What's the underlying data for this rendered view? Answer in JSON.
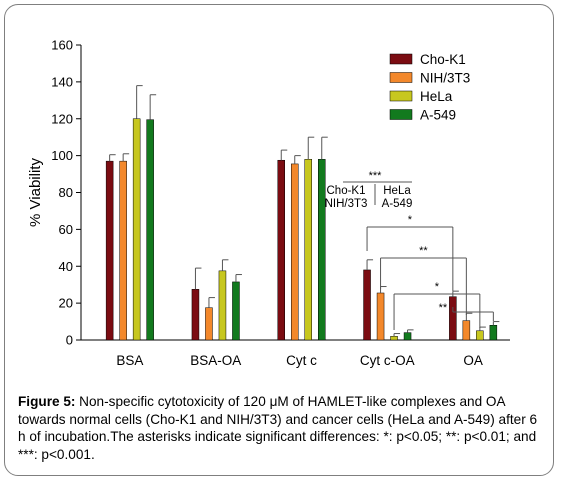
{
  "chart_data": {
    "type": "bar",
    "categories": [
      "BSA",
      "BSA-OA",
      "Cyt c",
      "Cyt c-OA",
      "OA"
    ],
    "series": [
      {
        "name": "Cho-K1",
        "color": "#7b0c12",
        "values": [
          97,
          27.5,
          97.5,
          38,
          23.5
        ],
        "errors": [
          3.5,
          11.5,
          5.5,
          5.5,
          3
        ]
      },
      {
        "name": "NIH/3T3",
        "color": "#f3882b",
        "values": [
          97,
          17.5,
          95.5,
          25.5,
          10.5
        ],
        "errors": [
          4,
          5.5,
          4.5,
          3.5,
          4
        ]
      },
      {
        "name": "HeLa",
        "color": "#c7c71f",
        "values": [
          120,
          37.5,
          98,
          2,
          5
        ],
        "errors": [
          18,
          6,
          12,
          1.5,
          2
        ]
      },
      {
        "name": "A-549",
        "color": "#127a1e",
        "values": [
          119.5,
          31.5,
          98,
          4,
          8
        ],
        "errors": [
          13.5,
          4,
          12,
          1.5,
          2
        ]
      }
    ],
    "ylabel": "% Viability",
    "xlabel": "",
    "ylim": [
      0,
      160
    ],
    "yticks": [
      0,
      20,
      40,
      60,
      80,
      100,
      120,
      140,
      160
    ],
    "legend_position": "top-right",
    "grid": false,
    "annotations": {
      "top_significance": "***",
      "group_left_lines": [
        "Cho-K1",
        "NIH/3T3"
      ],
      "group_right_lines": [
        "HeLa",
        "A-549"
      ],
      "brackets": [
        "*",
        "**",
        "*",
        "**"
      ]
    }
  },
  "caption": {
    "label": "Figure 5:",
    "text": " Non-specific cytotoxicity of 120 μM of HAMLET-like complexes and OA towards normal cells (Cho-K1 and NIH/3T3) and cancer cells (HeLa and A-549) after 6 h of incubation.The asterisks indicate significant differences: *: p<0.05; **: p<0.01; and ***: p<0.001."
  }
}
